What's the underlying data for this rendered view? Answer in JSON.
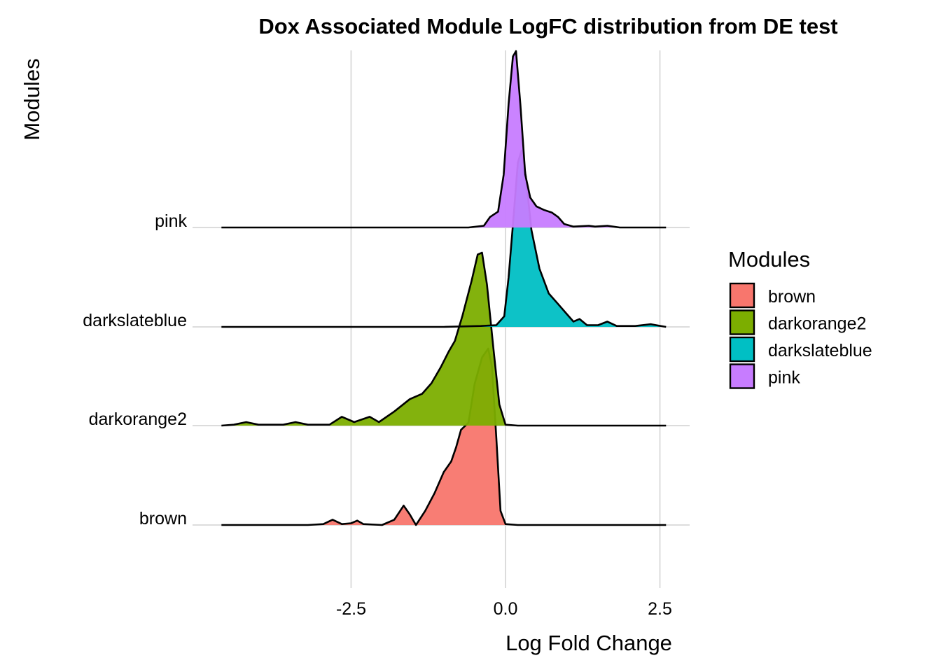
{
  "chart_data": {
    "type": "ridgeline",
    "title": "Dox Associated Module LogFC distribution from DE test",
    "xlabel": "Log Fold Change",
    "ylabel": "Modules",
    "xlim": [
      -4.6,
      2.6
    ],
    "x_ticks": [
      {
        "value": -2.5,
        "label": "-2.5"
      },
      {
        "value": 0.0,
        "label": "0.0"
      },
      {
        "value": 2.5,
        "label": "2.5"
      }
    ],
    "grid": true,
    "legend": {
      "title": "Modules",
      "position": "right",
      "entries": [
        {
          "label": "brown",
          "color": "#F8766D"
        },
        {
          "label": "darkorange2",
          "color": "#7CAE00"
        },
        {
          "label": "darkslateblue",
          "color": "#00BFC4"
        },
        {
          "label": "pink",
          "color": "#C77CFF"
        }
      ]
    },
    "series": [
      {
        "name": "brown",
        "color": "#F8766D",
        "density": [
          [
            -4.6,
            0
          ],
          [
            -3.2,
            0
          ],
          [
            -2.95,
            0.005
          ],
          [
            -2.8,
            0.03
          ],
          [
            -2.65,
            0.005
          ],
          [
            -2.5,
            0.01
          ],
          [
            -2.4,
            0.025
          ],
          [
            -2.3,
            0.005
          ],
          [
            -2.0,
            0.0
          ],
          [
            -1.8,
            0.03
          ],
          [
            -1.65,
            0.11
          ],
          [
            -1.55,
            0.06
          ],
          [
            -1.45,
            0.0
          ],
          [
            -1.3,
            0.08
          ],
          [
            -1.15,
            0.18
          ],
          [
            -1.0,
            0.3
          ],
          [
            -0.88,
            0.36
          ],
          [
            -0.8,
            0.44
          ],
          [
            -0.72,
            0.54
          ],
          [
            -0.6,
            0.58
          ],
          [
            -0.5,
            0.8
          ],
          [
            -0.38,
            0.95
          ],
          [
            -0.28,
            1.0
          ],
          [
            -0.22,
            0.9
          ],
          [
            -0.15,
            0.5
          ],
          [
            -0.08,
            0.08
          ],
          [
            0.0,
            0.005
          ],
          [
            0.2,
            0
          ],
          [
            2.6,
            0
          ]
        ]
      },
      {
        "name": "darkorange2",
        "color": "#7CAE00",
        "density": [
          [
            -4.6,
            0
          ],
          [
            -4.4,
            0.005
          ],
          [
            -4.2,
            0.02
          ],
          [
            -4.0,
            0.005
          ],
          [
            -3.6,
            0.005
          ],
          [
            -3.4,
            0.02
          ],
          [
            -3.2,
            0.005
          ],
          [
            -2.85,
            0.005
          ],
          [
            -2.65,
            0.05
          ],
          [
            -2.45,
            0.02
          ],
          [
            -2.2,
            0.05
          ],
          [
            -2.05,
            0.02
          ],
          [
            -1.8,
            0.08
          ],
          [
            -1.55,
            0.15
          ],
          [
            -1.35,
            0.18
          ],
          [
            -1.2,
            0.24
          ],
          [
            -1.05,
            0.33
          ],
          [
            -0.92,
            0.42
          ],
          [
            -0.82,
            0.48
          ],
          [
            -0.7,
            0.62
          ],
          [
            -0.55,
            0.82
          ],
          [
            -0.45,
            0.97
          ],
          [
            -0.38,
            0.98
          ],
          [
            -0.3,
            0.8
          ],
          [
            -0.2,
            0.45
          ],
          [
            -0.1,
            0.12
          ],
          [
            0.0,
            0.005
          ],
          [
            0.2,
            0
          ],
          [
            2.6,
            0
          ]
        ]
      },
      {
        "name": "darkslateblue",
        "color": "#00BFC4",
        "density": [
          [
            -4.6,
            0
          ],
          [
            -1.0,
            0
          ],
          [
            -0.4,
            0.005
          ],
          [
            -0.15,
            0.01
          ],
          [
            -0.02,
            0.06
          ],
          [
            0.05,
            0.28
          ],
          [
            0.12,
            0.58
          ],
          [
            0.2,
            0.93
          ],
          [
            0.26,
            1.0
          ],
          [
            0.33,
            0.85
          ],
          [
            0.42,
            0.55
          ],
          [
            0.55,
            0.33
          ],
          [
            0.7,
            0.19
          ],
          [
            0.85,
            0.13
          ],
          [
            1.0,
            0.07
          ],
          [
            1.1,
            0.03
          ],
          [
            1.2,
            0.045
          ],
          [
            1.32,
            0.01
          ],
          [
            1.5,
            0.01
          ],
          [
            1.65,
            0.03
          ],
          [
            1.8,
            0.005
          ],
          [
            2.1,
            0.005
          ],
          [
            2.35,
            0.015
          ],
          [
            2.6,
            0
          ]
        ]
      },
      {
        "name": "pink",
        "color": "#C77CFF",
        "density": [
          [
            -4.6,
            0
          ],
          [
            -0.6,
            0
          ],
          [
            -0.35,
            0.01
          ],
          [
            -0.25,
            0.06
          ],
          [
            -0.12,
            0.09
          ],
          [
            -0.03,
            0.3
          ],
          [
            0.05,
            0.7
          ],
          [
            0.12,
            0.97
          ],
          [
            0.17,
            1.0
          ],
          [
            0.24,
            0.7
          ],
          [
            0.32,
            0.3
          ],
          [
            0.4,
            0.17
          ],
          [
            0.5,
            0.12
          ],
          [
            0.62,
            0.1
          ],
          [
            0.75,
            0.085
          ],
          [
            0.85,
            0.06
          ],
          [
            0.95,
            0.02
          ],
          [
            1.1,
            0.005
          ],
          [
            1.35,
            0.01
          ],
          [
            1.45,
            0.005
          ],
          [
            1.65,
            0.01
          ],
          [
            1.85,
            0.0
          ],
          [
            2.6,
            0
          ]
        ]
      }
    ]
  }
}
